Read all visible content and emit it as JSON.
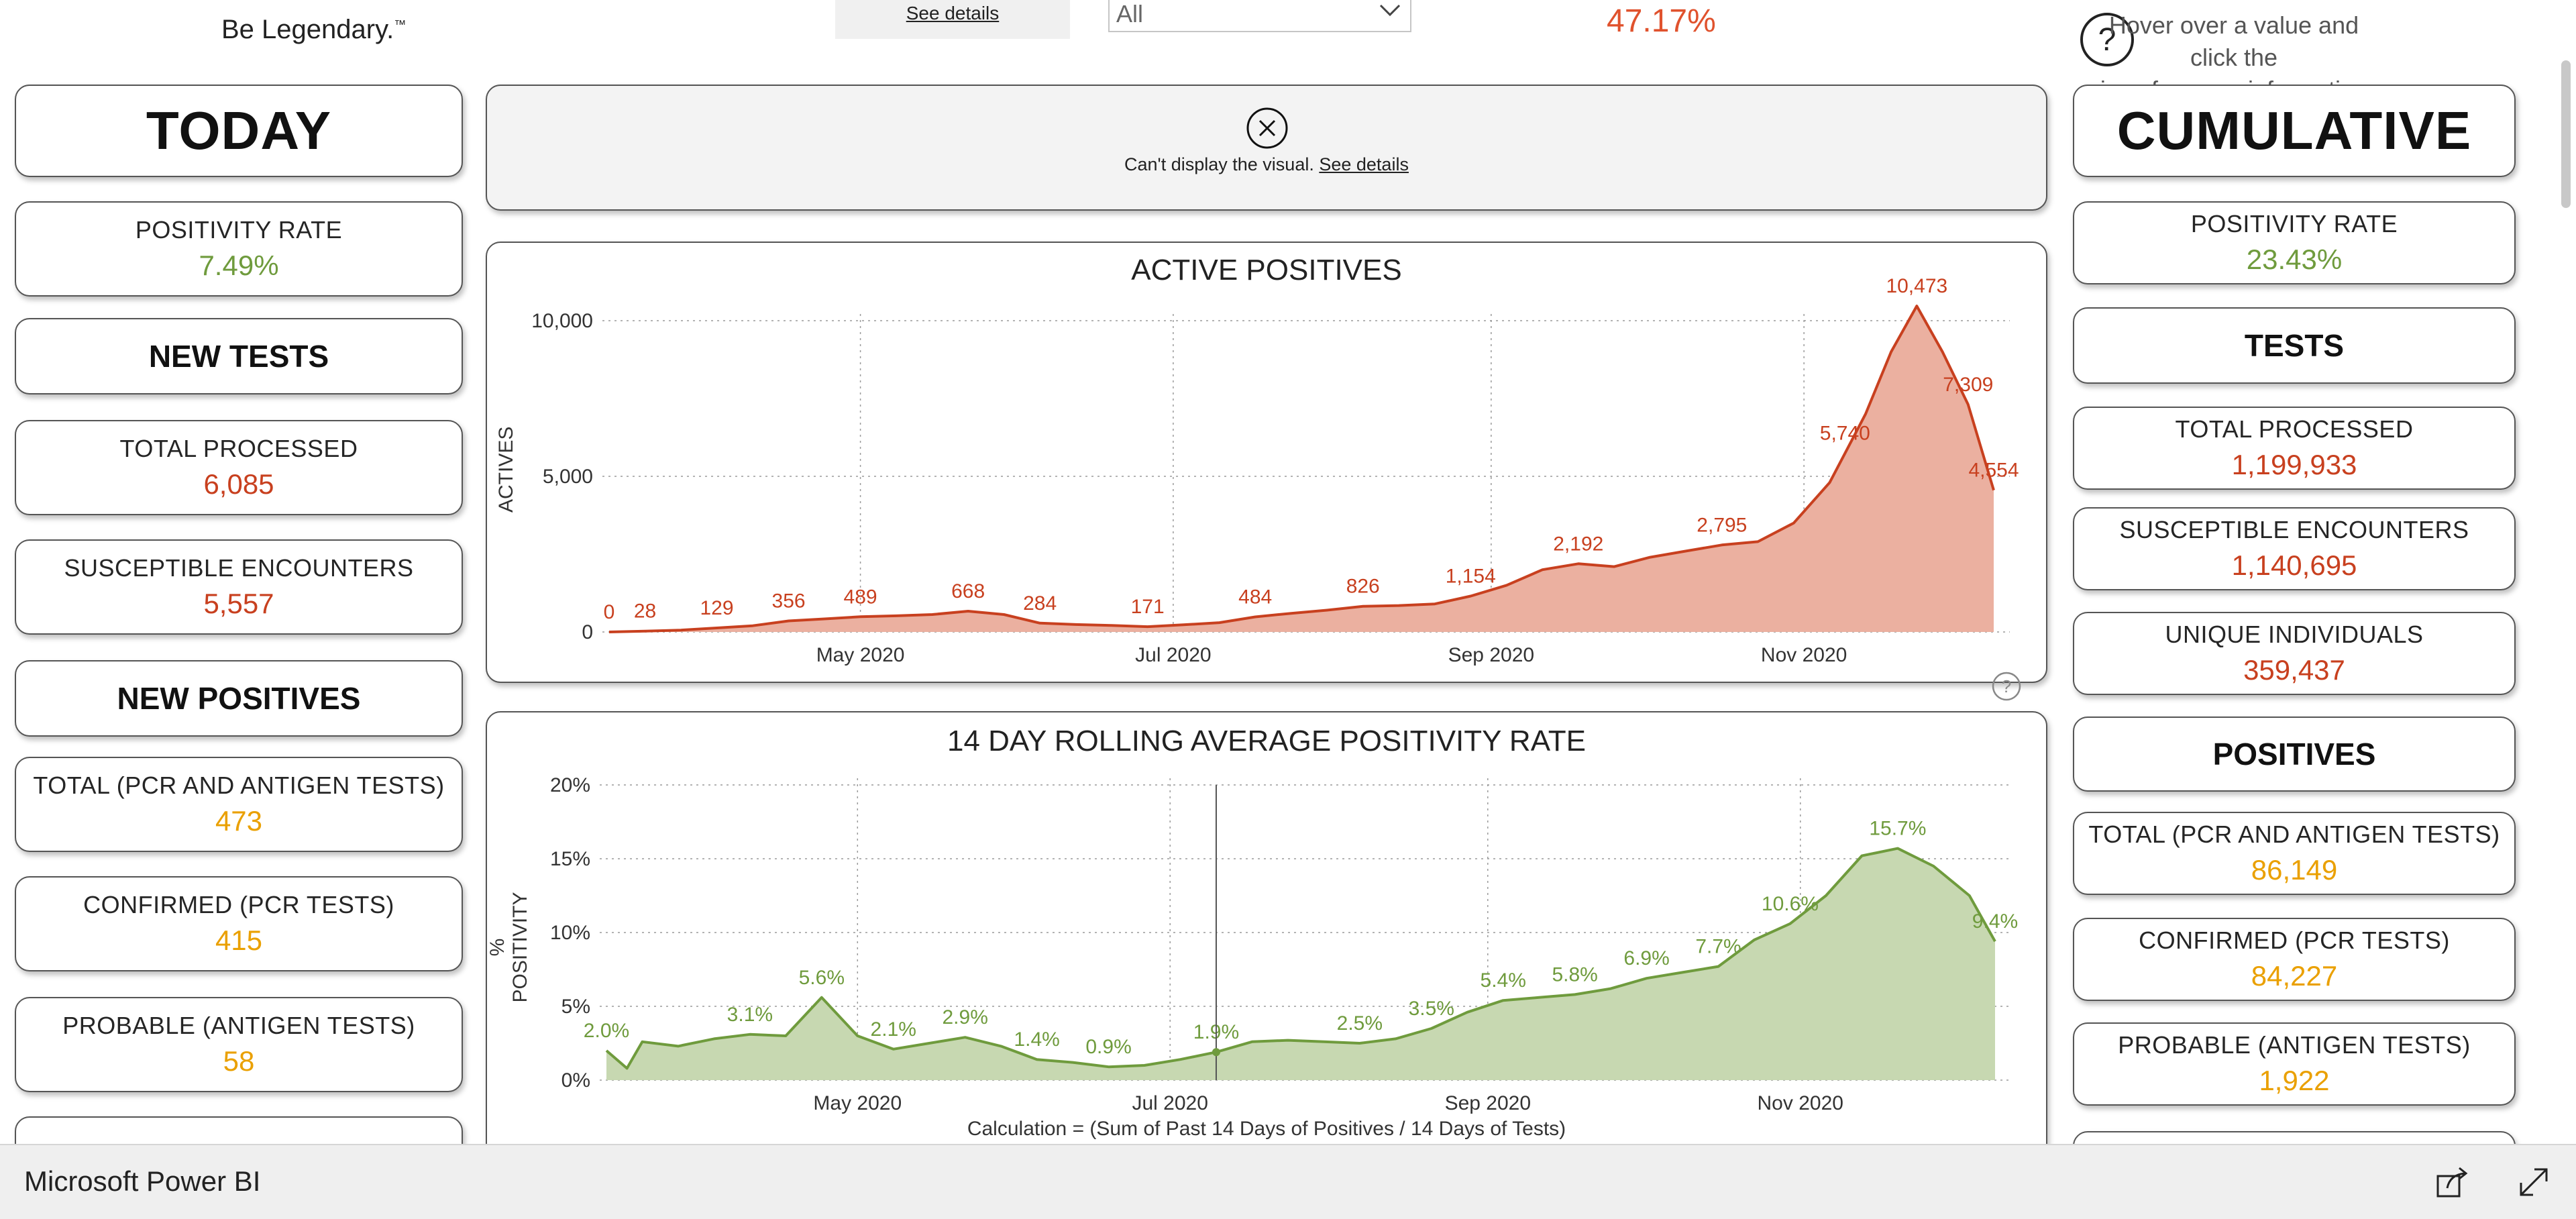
{
  "header": {
    "tagline": "Be Legendary.",
    "tagline_tm": "™",
    "see_details_top": "See details",
    "filter_value": "All",
    "headline_pct": "47.17%",
    "help_text_line1": "Hover over a value and click the",
    "help_text_line2": "icon for more information",
    "help_icon": "question-circle-icon"
  },
  "today": {
    "title": "TODAY",
    "positivity_label": "POSITIVITY RATE",
    "positivity_value": "7.49%",
    "new_tests_title": "NEW TESTS",
    "total_processed_label": "TOTAL PROCESSED",
    "total_processed_value": "6,085",
    "susceptible_label": "SUSCEPTIBLE ENCOUNTERS",
    "susceptible_value": "5,557",
    "new_positives_title": "NEW POSITIVES",
    "total_pcr_label": "TOTAL (PCR AND ANTIGEN TESTS)",
    "total_pcr_value": "473",
    "confirmed_label": "CONFIRMED (PCR TESTS)",
    "confirmed_value": "415",
    "probable_label": "PROBABLE (ANTIGEN TESTS)",
    "probable_value": "58"
  },
  "cumulative": {
    "title": "CUMULATIVE",
    "positivity_label": "POSITIVITY RATE",
    "positivity_value": "23.43%",
    "tests_title": "TESTS",
    "total_processed_label": "TOTAL PROCESSED",
    "total_processed_value": "1,199,933",
    "susceptible_label": "SUSCEPTIBLE ENCOUNTERS",
    "susceptible_value": "1,140,695",
    "unique_label": "UNIQUE INDIVIDUALS",
    "unique_value": "359,437",
    "positives_title": "POSITIVES",
    "total_pcr_label": "TOTAL (PCR AND ANTIGEN TESTS)",
    "total_pcr_value": "86,149",
    "confirmed_label": "CONFIRMED (PCR TESTS)",
    "confirmed_value": "84,227",
    "probable_label": "PROBABLE (ANTIGEN TESTS)",
    "probable_value": "1,922"
  },
  "error_visual": {
    "message": "Can't display the visual.",
    "link": "See details",
    "icon": "close-circle-icon"
  },
  "footer": {
    "app_name": "Microsoft Power BI",
    "share_icon": "share-icon",
    "expand_icon": "expand-icon"
  },
  "colors": {
    "positives_line": "#c8401f",
    "positives_fill": "#ebb0a0",
    "positivity_line": "#6f9b3d",
    "positivity_fill": "#c7d8b1",
    "pending_orange": "#eaa000"
  },
  "chart_data": [
    {
      "type": "area",
      "title": "ACTIVE POSITIVES",
      "ylabel": "ACTIVES",
      "xlabel": "",
      "ylim": [
        0,
        10000
      ],
      "yticks": [
        0,
        5000,
        10000
      ],
      "ytick_labels": [
        "0",
        "5,000",
        "10,000"
      ],
      "xticks": [
        {
          "date": "2020-05-01",
          "label": "May 2020"
        },
        {
          "date": "2020-07-01",
          "label": "Jul 2020"
        },
        {
          "date": "2020-09-01",
          "label": "Sep 2020"
        },
        {
          "date": "2020-11-01",
          "label": "Nov 2020"
        }
      ],
      "grid": true,
      "x": [
        "2020-03-13",
        "2020-03-20",
        "2020-03-27",
        "2020-04-03",
        "2020-04-10",
        "2020-04-17",
        "2020-04-24",
        "2020-05-01",
        "2020-05-08",
        "2020-05-15",
        "2020-05-22",
        "2020-05-29",
        "2020-06-05",
        "2020-06-12",
        "2020-06-19",
        "2020-06-26",
        "2020-07-03",
        "2020-07-10",
        "2020-07-17",
        "2020-07-24",
        "2020-07-31",
        "2020-08-07",
        "2020-08-14",
        "2020-08-21",
        "2020-08-28",
        "2020-09-04",
        "2020-09-11",
        "2020-09-18",
        "2020-09-25",
        "2020-10-02",
        "2020-10-09",
        "2020-10-16",
        "2020-10-23",
        "2020-10-30",
        "2020-11-06",
        "2020-11-09",
        "2020-11-13",
        "2020-11-18",
        "2020-11-23",
        "2020-11-28",
        "2020-12-03",
        "2020-12-08"
      ],
      "values": [
        0,
        28,
        60,
        129,
        200,
        356,
        420,
        489,
        520,
        560,
        668,
        560,
        284,
        240,
        210,
        171,
        230,
        300,
        484,
        600,
        700,
        826,
        850,
        900,
        1154,
        1500,
        2000,
        2192,
        2100,
        2400,
        2600,
        2795,
        2900,
        3500,
        4800,
        5740,
        7000,
        9000,
        10473,
        9000,
        7309,
        4554
      ],
      "data_labels": [
        {
          "x": "2020-03-13",
          "label": "0"
        },
        {
          "x": "2020-03-20",
          "label": "28"
        },
        {
          "x": "2020-04-03",
          "label": "129"
        },
        {
          "x": "2020-04-17",
          "label": "356"
        },
        {
          "x": "2020-05-01",
          "label": "489"
        },
        {
          "x": "2020-05-22",
          "label": "668"
        },
        {
          "x": "2020-06-05",
          "label": "284"
        },
        {
          "x": "2020-06-26",
          "label": "171"
        },
        {
          "x": "2020-07-17",
          "label": "484"
        },
        {
          "x": "2020-08-07",
          "label": "826"
        },
        {
          "x": "2020-08-28",
          "label": "1,154"
        },
        {
          "x": "2020-09-18",
          "label": "2,192"
        },
        {
          "x": "2020-10-16",
          "label": "2,795"
        },
        {
          "x": "2020-11-09",
          "label": "5,740"
        },
        {
          "x": "2020-11-23",
          "label": "10,473"
        },
        {
          "x": "2020-12-03",
          "label": "7,309"
        },
        {
          "x": "2020-12-08",
          "label": "4,554"
        }
      ]
    },
    {
      "type": "area",
      "title": "14 DAY ROLLING AVERAGE POSITIVITY RATE",
      "ylabel": "% POSITIVITY",
      "xlabel": "",
      "caption": "Calculation = (Sum of Past 14 Days of Positives / 14 Days of Tests)",
      "ylim": [
        0,
        20
      ],
      "yticks": [
        0,
        5,
        10,
        15,
        20
      ],
      "ytick_labels": [
        "0%",
        "5%",
        "10%",
        "15%",
        "20%"
      ],
      "xticks": [
        {
          "date": "2020-05-01",
          "label": "May 2020"
        },
        {
          "date": "2020-07-01",
          "label": "Jul 2020"
        },
        {
          "date": "2020-09-01",
          "label": "Sep 2020"
        },
        {
          "date": "2020-11-01",
          "label": "Nov 2020"
        }
      ],
      "grid": true,
      "x": [
        "2020-03-13",
        "2020-03-17",
        "2020-03-20",
        "2020-03-27",
        "2020-04-03",
        "2020-04-10",
        "2020-04-17",
        "2020-04-24",
        "2020-05-01",
        "2020-05-08",
        "2020-05-15",
        "2020-05-22",
        "2020-05-29",
        "2020-06-05",
        "2020-06-12",
        "2020-06-19",
        "2020-06-26",
        "2020-07-03",
        "2020-07-10",
        "2020-07-17",
        "2020-07-24",
        "2020-07-31",
        "2020-08-07",
        "2020-08-14",
        "2020-08-21",
        "2020-08-28",
        "2020-09-04",
        "2020-09-11",
        "2020-09-18",
        "2020-09-25",
        "2020-10-02",
        "2020-10-09",
        "2020-10-16",
        "2020-10-23",
        "2020-10-30",
        "2020-11-06",
        "2020-11-13",
        "2020-11-20",
        "2020-11-27",
        "2020-12-04",
        "2020-12-09"
      ],
      "values": [
        2.0,
        0.8,
        2.6,
        2.3,
        2.8,
        3.1,
        3.0,
        5.6,
        3.0,
        2.1,
        2.5,
        2.9,
        2.3,
        1.4,
        1.2,
        0.9,
        1.0,
        1.4,
        1.9,
        2.6,
        2.7,
        2.6,
        2.5,
        2.8,
        3.5,
        4.6,
        5.4,
        5.6,
        5.8,
        6.2,
        6.9,
        7.3,
        7.7,
        9.5,
        10.6,
        12.5,
        15.2,
        15.7,
        14.5,
        12.5,
        9.4
      ],
      "data_labels": [
        {
          "x": "2020-03-13",
          "label": "2.0%"
        },
        {
          "x": "2020-04-10",
          "label": "3.1%"
        },
        {
          "x": "2020-04-24",
          "label": "5.6%"
        },
        {
          "x": "2020-05-08",
          "label": "2.1%"
        },
        {
          "x": "2020-05-22",
          "label": "2.9%"
        },
        {
          "x": "2020-06-05",
          "label": "1.4%"
        },
        {
          "x": "2020-06-19",
          "label": "0.9%"
        },
        {
          "x": "2020-07-10",
          "label": "1.9%"
        },
        {
          "x": "2020-08-07",
          "label": "2.5%"
        },
        {
          "x": "2020-08-21",
          "label": "3.5%"
        },
        {
          "x": "2020-09-04",
          "label": "5.4%"
        },
        {
          "x": "2020-09-18",
          "label": "5.8%"
        },
        {
          "x": "2020-10-02",
          "label": "6.9%"
        },
        {
          "x": "2020-10-16",
          "label": "7.7%"
        },
        {
          "x": "2020-10-30",
          "label": "10.6%"
        },
        {
          "x": "2020-11-20",
          "label": "15.7%"
        },
        {
          "x": "2020-12-09",
          "label": "9.4%"
        }
      ]
    }
  ]
}
